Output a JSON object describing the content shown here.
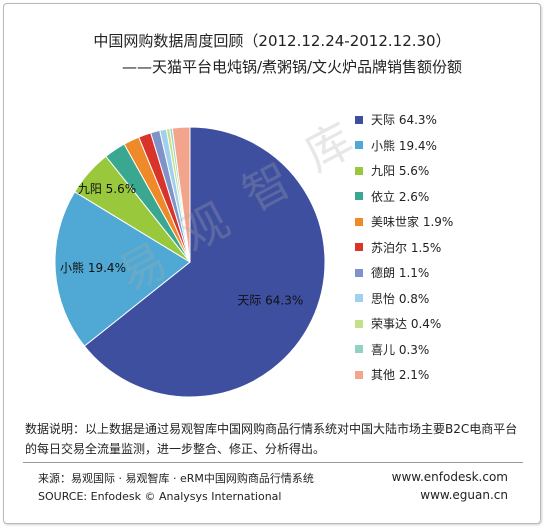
{
  "title": "中国网购数据周度回顾（2012.12.24-2012.12.30）",
  "subtitle": "——天猫平台电炖锅/煮粥锅/文火炉品牌销售额份额",
  "watermark": "易观智库",
  "note": "数据说明：以上数据是通过易观智库中国网购商品行情系统对中国大陆市场主要B2C电商平台的每日交易全流量监测，进一步整合、修正、分析得出。",
  "source": {
    "line1": "来源：易观国际 · 易观智库 · eRM中国网购商品行情系统",
    "line2": "SOURCE: Enfodesk © Analysys International",
    "url1": "www.enfodesk.com",
    "url2": "www.eguan.cn"
  },
  "chart_data": {
    "type": "pie",
    "title": "中国网购数据周度回顾（2012.12.24-2012.12.30）",
    "subtitle": "——天猫平台电炖锅/煮粥锅/文火炉品牌销售额份额",
    "unit": "%",
    "legend_position": "right",
    "slices": [
      {
        "name": "天际",
        "value": 64.3,
        "label": "天际 64.3%",
        "color": "#3f4fa0"
      },
      {
        "name": "小熊",
        "value": 19.4,
        "label": "小熊 19.4%",
        "color": "#4fa9d4"
      },
      {
        "name": "九阳",
        "value": 5.6,
        "label": "九阳 5.6%",
        "color": "#9ac83c"
      },
      {
        "name": "依立",
        "value": 2.6,
        "label": "依立 2.6%",
        "color": "#3aa890"
      },
      {
        "name": "美味世家",
        "value": 1.9,
        "label": "美味世家 1.9%",
        "color": "#ee8a2a"
      },
      {
        "name": "苏泊尔",
        "value": 1.5,
        "label": "苏泊尔 1.5%",
        "color": "#d8342a"
      },
      {
        "name": "德朗",
        "value": 1.1,
        "label": "德朗 1.1%",
        "color": "#7f93c8"
      },
      {
        "name": "思怡",
        "value": 0.8,
        "label": "思怡 0.8%",
        "color": "#9fd0ee"
      },
      {
        "name": "荣事达",
        "value": 0.4,
        "label": "荣事达 0.4%",
        "color": "#c4e08a"
      },
      {
        "name": "喜儿",
        "value": 0.3,
        "label": "喜儿 0.3%",
        "color": "#93d2c2"
      },
      {
        "name": "其他",
        "value": 2.1,
        "label": "其他 2.1%",
        "color": "#f2a58c"
      }
    ],
    "data_labels": [
      {
        "slice": 0,
        "text": "天际 64.3%"
      },
      {
        "slice": 1,
        "text": "小熊 19.4%"
      },
      {
        "slice": 2,
        "text": "九阳 5.6%"
      }
    ]
  }
}
